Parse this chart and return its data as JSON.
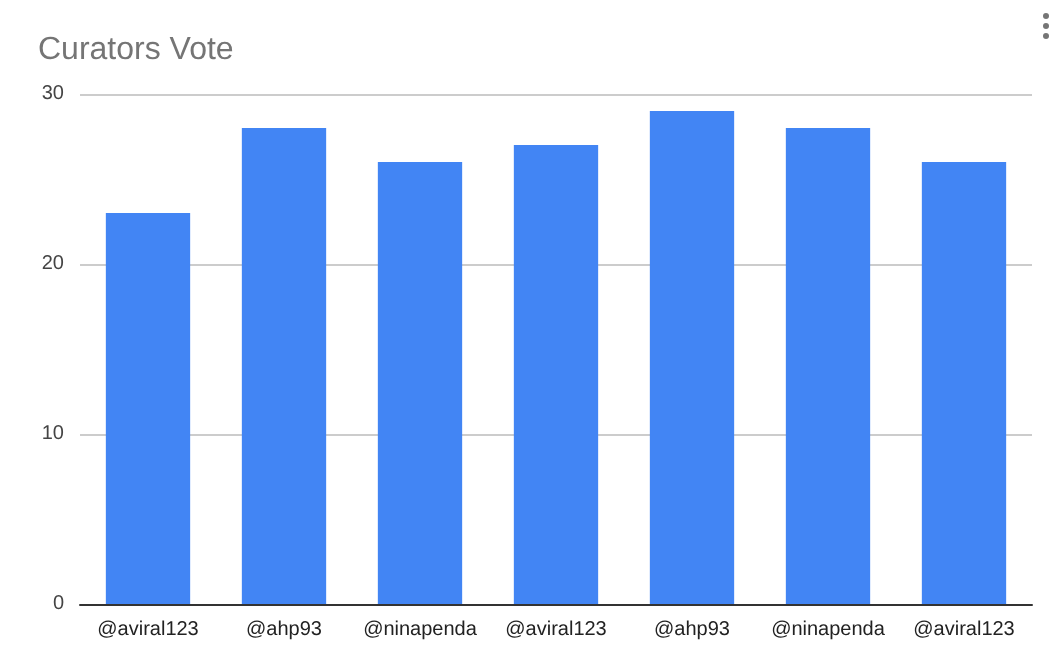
{
  "chart_data": {
    "type": "bar",
    "title": "Curators Vote",
    "categories": [
      "@aviral123",
      "@ahp93",
      "@ninapenda",
      "@aviral123",
      "@ahp93",
      "@ninapenda",
      "@aviral123"
    ],
    "values": [
      23,
      28,
      26,
      27,
      29,
      28,
      26
    ],
    "color": "#4285f4",
    "ylim": [
      0,
      30
    ],
    "yticks": [
      0,
      10,
      20,
      30
    ],
    "grid": "y"
  }
}
